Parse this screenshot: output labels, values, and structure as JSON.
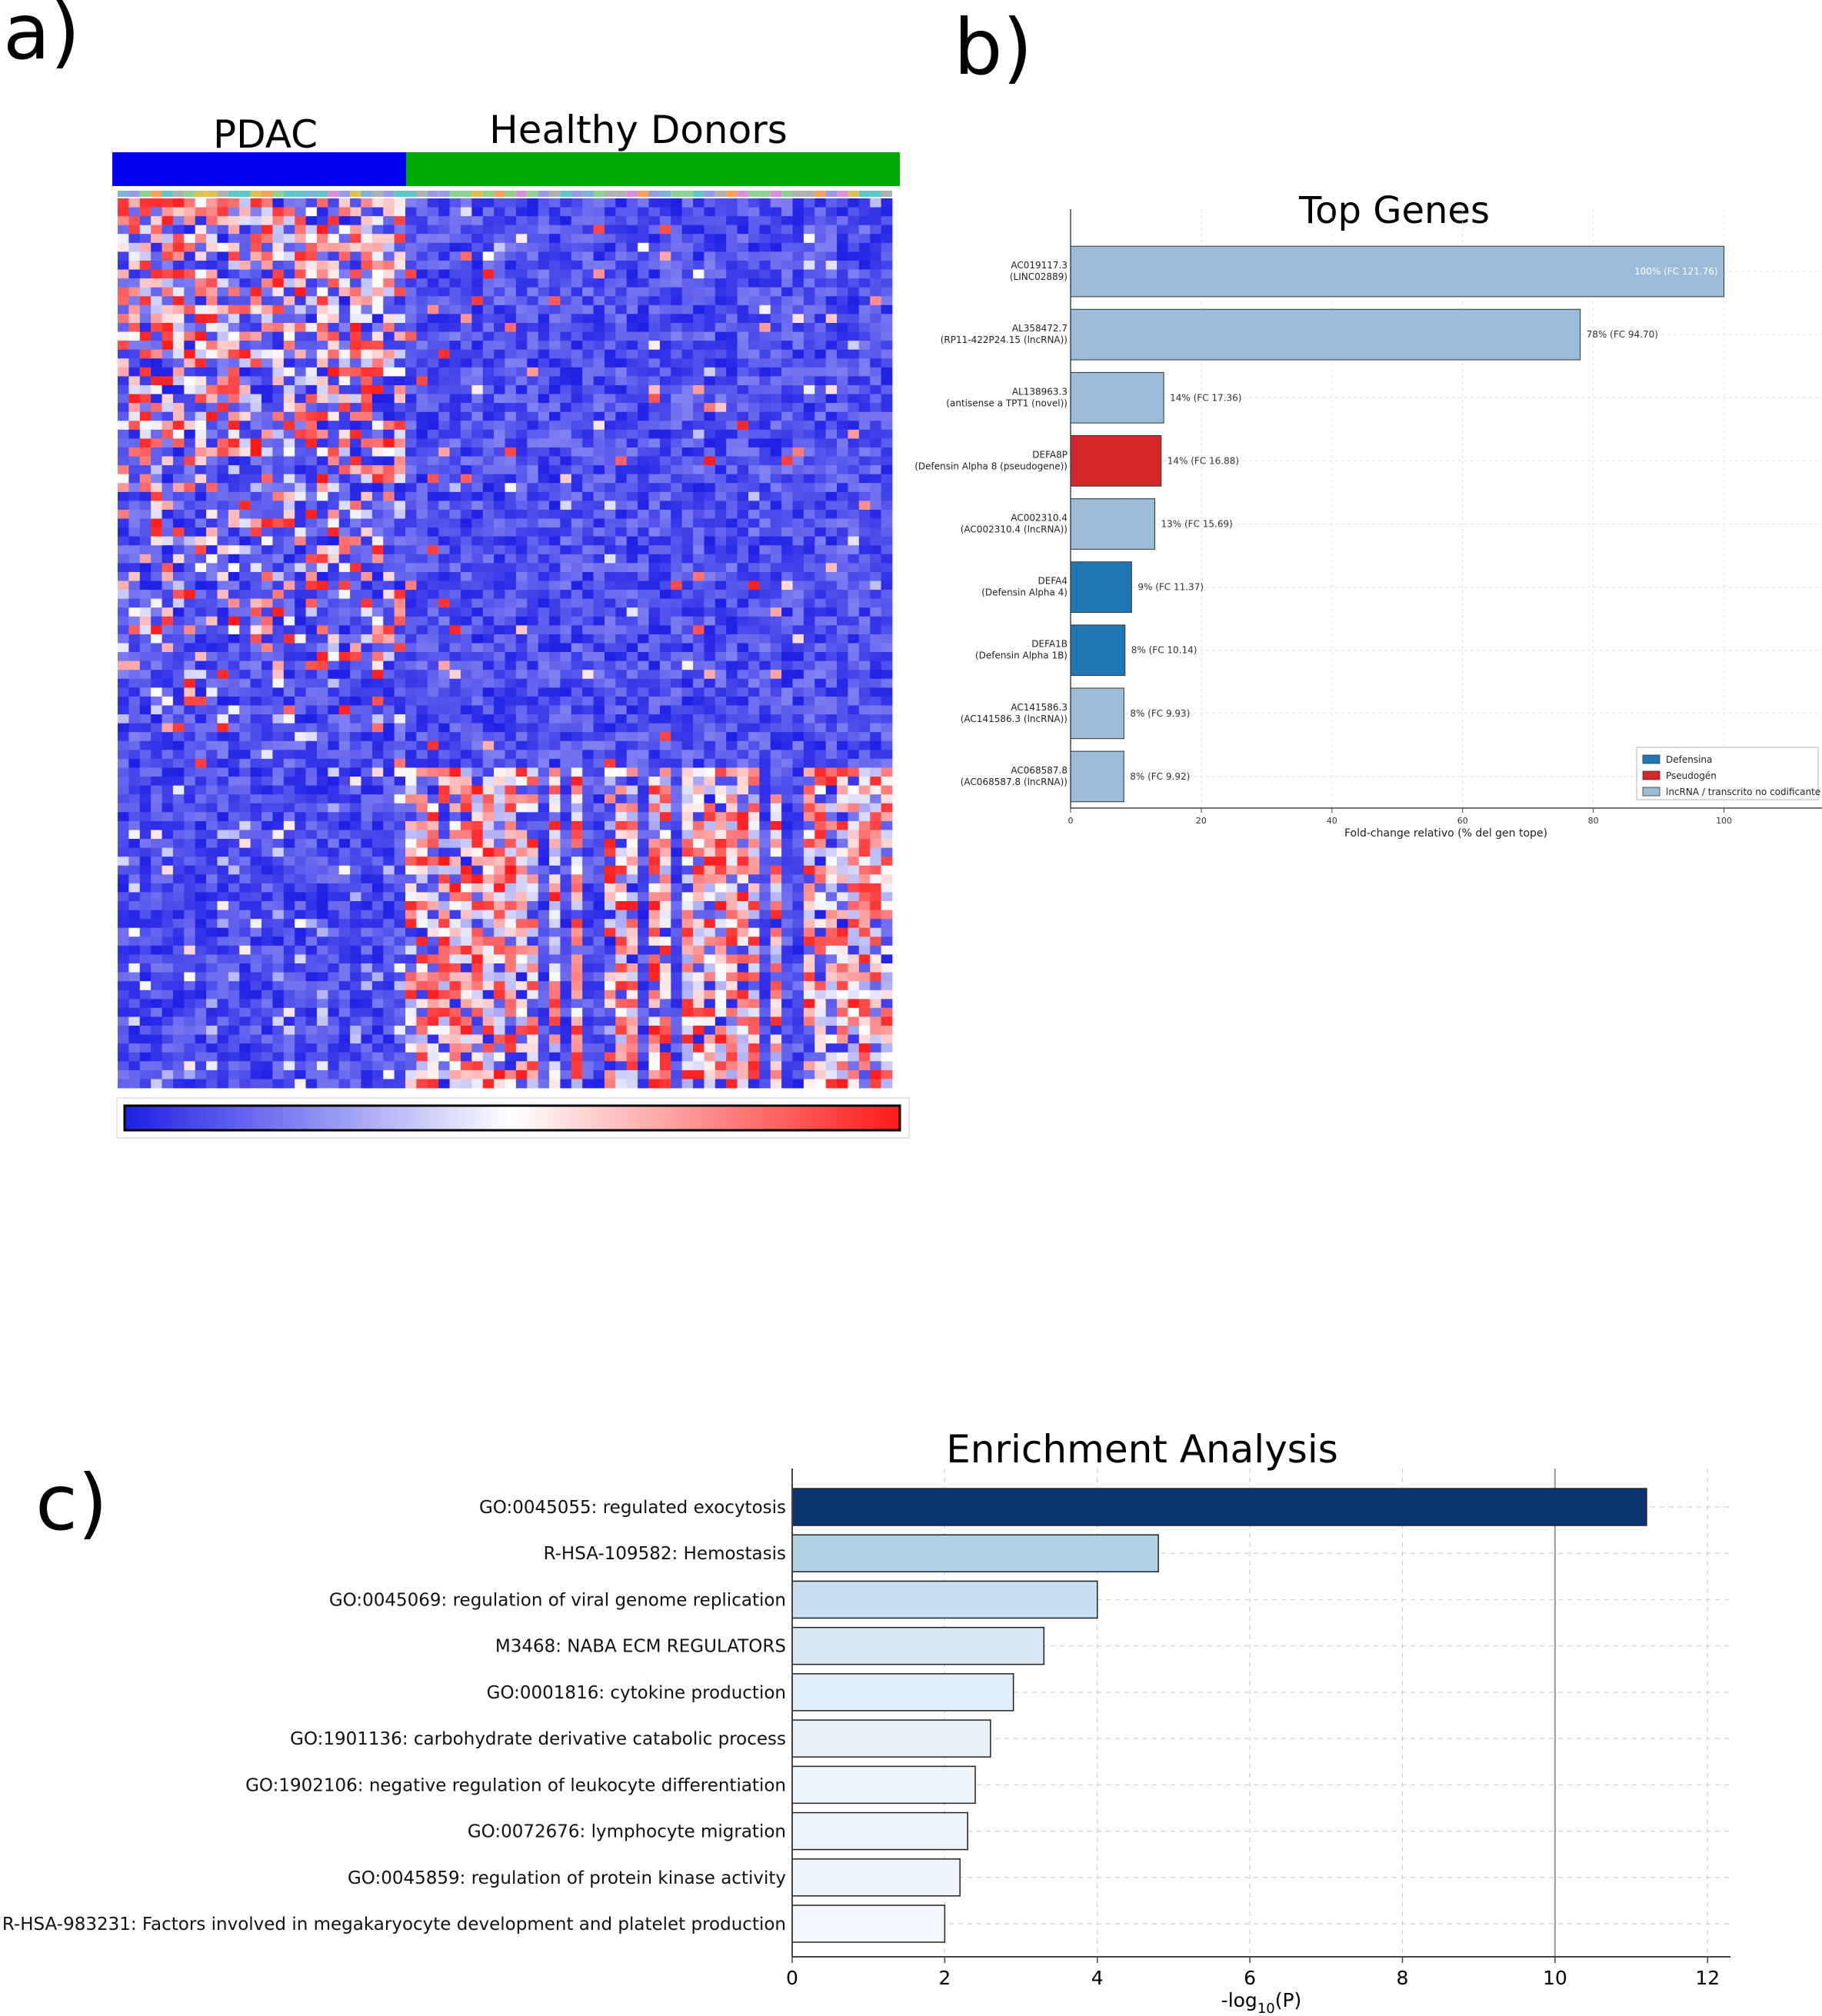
{
  "panels": {
    "a_label": "a)",
    "b_label": "b)",
    "c_label": "c)"
  },
  "heatmap": {
    "group_labels": [
      "PDAC",
      "Healthy Donors"
    ],
    "group_colors": [
      "#0000ee",
      "#00aa00"
    ],
    "colorscale": [
      "#1f1fe6",
      "#ffffff",
      "#ff1a1a"
    ]
  },
  "chart_data": [
    {
      "type": "bar",
      "orientation": "horizontal",
      "title": "Top Genes",
      "xlabel": "Fold-change relativo (% del gen tope)",
      "xlim": [
        0,
        115
      ],
      "xticks": [
        0,
        20,
        40,
        60,
        80,
        100
      ],
      "grid": true,
      "legend_position": "bottom-right",
      "legend": [
        {
          "name": "Defensina",
          "color": "#1f77b4"
        },
        {
          "name": "Pseudogén",
          "color": "#d62728"
        },
        {
          "name": "lncRNA / transcrito no codificante",
          "color": "#9cbcd9"
        }
      ],
      "bars": [
        {
          "gene": "AC019117.3",
          "desc": "(LINC02889)",
          "value": 100,
          "label": "100%  (FC 121.76)",
          "category": 2
        },
        {
          "gene": "AL358472.7",
          "desc": "(RP11-422P24.15 (lncRNA))",
          "value": 78,
          "label": "78%  (FC 94.70)",
          "category": 2
        },
        {
          "gene": "AL138963.3",
          "desc": "(antisense a TPT1 (novel))",
          "value": 14.26,
          "label": "14%  (FC 17.36)",
          "category": 2
        },
        {
          "gene": "DEFA8P",
          "desc": "(Defensin Alpha 8 (pseudogene))",
          "value": 13.86,
          "label": "14%  (FC 16.88)",
          "category": 1
        },
        {
          "gene": "AC002310.4",
          "desc": "(AC002310.4 (lncRNA))",
          "value": 12.89,
          "label": "13%  (FC 15.69)",
          "category": 2
        },
        {
          "gene": "DEFA4",
          "desc": "(Defensin Alpha 4)",
          "value": 9.34,
          "label": "9%  (FC 11.37)",
          "category": 0
        },
        {
          "gene": "DEFA1B",
          "desc": "(Defensin Alpha 1B)",
          "value": 8.33,
          "label": "8%  (FC 10.14)",
          "category": 0
        },
        {
          "gene": "AC141586.3",
          "desc": "(AC141586.3 (lncRNA))",
          "value": 8.16,
          "label": "8%  (FC 9.93)",
          "category": 2
        },
        {
          "gene": "AC068587.8",
          "desc": "(AC068587.8 (lncRNA))",
          "value": 8.15,
          "label": "8%  (FC 9.92)",
          "category": 2
        }
      ]
    },
    {
      "type": "bar",
      "orientation": "horizontal",
      "title": "Enrichment Analysis",
      "xlabel_main": "-log",
      "xlabel_sub": "10",
      "xlabel_tail": "(P)",
      "xlim": [
        0,
        12.3
      ],
      "xticks": [
        0,
        2,
        4,
        6,
        8,
        10,
        12
      ],
      "grid": true,
      "reference_line": 10,
      "terms": [
        {
          "label": "GO:0045055: regulated exocytosis",
          "value": 11.2,
          "color": "#0b3470"
        },
        {
          "label": "R-HSA-109582: Hemostasis",
          "value": 4.8,
          "color": "#b3d3e9"
        },
        {
          "label": "GO:0045069: regulation of viral genome replication",
          "value": 4.0,
          "color": "#cadff0"
        },
        {
          "label": "M3468: NABA ECM REGULATORS",
          "value": 3.3,
          "color": "#d9e8f5"
        },
        {
          "label": "GO:0001816: cytokine production",
          "value": 2.9,
          "color": "#e1edf8"
        },
        {
          "label": "GO:1901136: carbohydrate derivative catabolic process",
          "value": 2.6,
          "color": "#e8f1fa"
        },
        {
          "label": "GO:1902106: negative regulation of leukocyte differentiation",
          "value": 2.4,
          "color": "#ebf3fb"
        },
        {
          "label": "GO:0072676: lymphocyte migration",
          "value": 2.3,
          "color": "#edf4fb"
        },
        {
          "label": "GO:0045859: regulation of protein kinase activity",
          "value": 2.2,
          "color": "#eff5fc"
        },
        {
          "label": "R-HSA-983231: Factors involved in megakaryocyte development and platelet production",
          "value": 2.0,
          "color": "#f2f7fd"
        }
      ]
    }
  ]
}
